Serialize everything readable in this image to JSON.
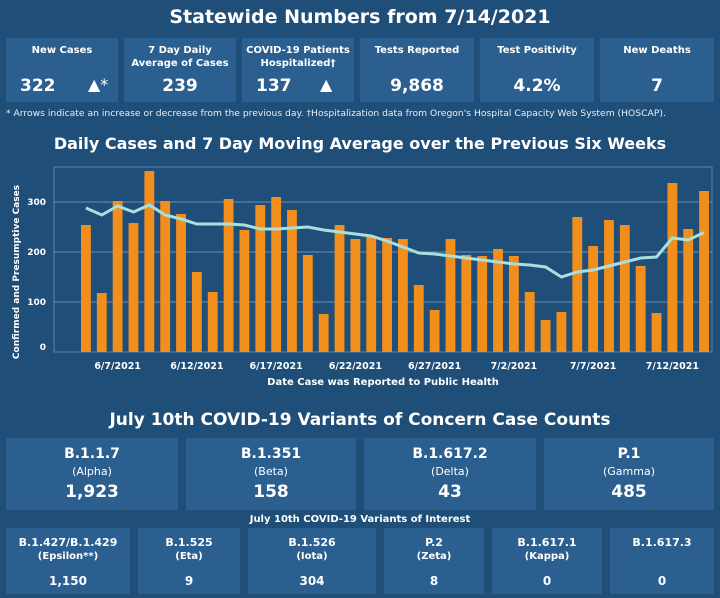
{
  "title": "Statewide Numbers from 7/14/2021",
  "kpis": [
    {
      "label": "New Cases",
      "value": "322",
      "indicator": "▲*"
    },
    {
      "label": "7 Day Daily Average of Cases",
      "value": "239"
    },
    {
      "label": "COVID-19 Patients Hospitalized†",
      "value": "137",
      "indicator": "▲"
    },
    {
      "label": "Tests Reported",
      "value": "9,868"
    },
    {
      "label": "Test Positivity",
      "value": "4.2%"
    },
    {
      "label": "New Deaths",
      "value": "7"
    }
  ],
  "note": "* Arrows indicate an increase or decrease from the previous day. †Hospitalization data from Oregon's Hospital Capacity Web System (HOSCAP).",
  "chart_data": {
    "type": "bar",
    "title": "Daily Cases and 7 Day Moving Average over the Previous Six Weeks",
    "xlabel": "Date Case was Reported to Public Health",
    "ylabel": "Confirmed and Presumptive Cases",
    "ylim": [
      0,
      370
    ],
    "yticks": [
      0,
      100,
      200,
      300
    ],
    "grid": true,
    "bar_color": "#f28e1c",
    "line_color": "#a8e0e0",
    "x_tick_labels": [
      "6/7/2021",
      "6/12/2021",
      "6/17/2021",
      "6/22/2021",
      "6/27/2021",
      "7/2/2021",
      "7/7/2021",
      "7/12/2021"
    ],
    "x_tick_indices": [
      2,
      7,
      12,
      17,
      22,
      27,
      32,
      37
    ],
    "series": [
      {
        "name": "Daily Cases",
        "type": "bar",
        "values": [
          254,
          118,
          302,
          258,
          362,
          302,
          276,
          160,
          120,
          306,
          244,
          294,
          310,
          284,
          194,
          76,
          254,
          226,
          232,
          228,
          226,
          134,
          84,
          226,
          194,
          192,
          206,
          192,
          120,
          64,
          80,
          270,
          212,
          264,
          254,
          172,
          78,
          338,
          246,
          322
        ]
      },
      {
        "name": "7 Day Moving Average",
        "type": "line",
        "values": [
          288,
          274,
          292,
          280,
          294,
          274,
          266,
          256,
          256,
          256,
          254,
          246,
          246,
          248,
          250,
          244,
          240,
          236,
          232,
          222,
          210,
          198,
          196,
          192,
          188,
          184,
          180,
          176,
          174,
          170,
          150,
          160,
          164,
          172,
          180,
          188,
          190,
          228,
          224,
          239
        ]
      }
    ]
  },
  "voc": {
    "title": "July 10th  COVID-19 Variants of Concern Case Counts",
    "items": [
      {
        "name": "B.1.1.7",
        "greek": "(Alpha)",
        "count": "1,923"
      },
      {
        "name": "B.1.351",
        "greek": "(Beta)",
        "count": "158"
      },
      {
        "name": "B.1.617.2",
        "greek": "(Delta)",
        "count": "43"
      },
      {
        "name": "P.1",
        "greek": "(Gamma)",
        "count": "485"
      }
    ]
  },
  "voi": {
    "title": "July 10th COVID-19 Variants of Interest",
    "items": [
      {
        "name": "B.1.427/B.1.429",
        "greek": "(Epsilon**)",
        "count": "1,150"
      },
      {
        "name": "B.1.525",
        "greek": "(Eta)",
        "count": "9"
      },
      {
        "name": "B.1.526",
        "greek": "(Iota)",
        "count": "304"
      },
      {
        "name": "P.2",
        "greek": "(Zeta)",
        "count": "8"
      },
      {
        "name": "B.1.617.1",
        "greek": "(Kappa)",
        "count": "0"
      },
      {
        "name": "B.1.617.3",
        "greek": "",
        "count": "0"
      }
    ]
  }
}
